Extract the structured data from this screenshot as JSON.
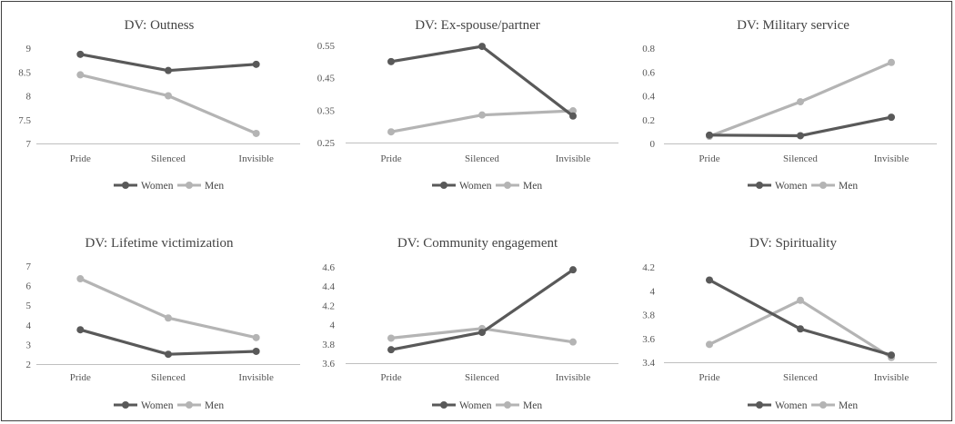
{
  "colors": {
    "women": "#595959",
    "men": "#b4b4b4",
    "axis": "#bfbfbf",
    "text": "#444444"
  },
  "legend": {
    "women": "Women",
    "men": "Men"
  },
  "chart_data": [
    {
      "type": "line",
      "title": "DV: Outness",
      "categories": [
        "Pride",
        "Silenced",
        "Invisible"
      ],
      "ylim": [
        7,
        9
      ],
      "yticks": [
        7,
        7.5,
        8,
        8.5,
        9
      ],
      "ytick_labels": [
        "7",
        "7.5",
        "8",
        "8.5",
        "9"
      ],
      "series": [
        {
          "name": "Women",
          "values": [
            8.87,
            8.53,
            8.66
          ]
        },
        {
          "name": "Men",
          "values": [
            8.44,
            8.0,
            7.21
          ]
        }
      ]
    },
    {
      "type": "line",
      "title": "DV: Ex-spouse/partner",
      "categories": [
        "Pride",
        "Silenced",
        "Invisible"
      ],
      "ylim": [
        0.25,
        0.55
      ],
      "yticks": [
        0.25,
        0.35,
        0.45,
        0.55
      ],
      "ytick_labels": [
        "0.25",
        "0.35",
        "0.45",
        "0.55"
      ],
      "series": [
        {
          "name": "Women",
          "values": [
            0.5,
            0.547,
            0.332
          ]
        },
        {
          "name": "Men",
          "values": [
            0.283,
            0.335,
            0.348
          ]
        }
      ]
    },
    {
      "type": "line",
      "title": "DV: Military service",
      "categories": [
        "Pride",
        "Silenced",
        "Invisible"
      ],
      "ylim": [
        0,
        0.8
      ],
      "yticks": [
        0,
        0.2,
        0.4,
        0.6,
        0.8
      ],
      "ytick_labels": [
        "0",
        "0.2",
        "0.4",
        "0.6",
        "0.8"
      ],
      "series": [
        {
          "name": "Women",
          "values": [
            0.07,
            0.065,
            0.22
          ]
        },
        {
          "name": "Men",
          "values": [
            0.06,
            0.35,
            0.68
          ]
        }
      ]
    },
    {
      "type": "line",
      "title": "DV: Lifetime victimization",
      "categories": [
        "Pride",
        "Silenced",
        "Invisible"
      ],
      "ylim": [
        2,
        7
      ],
      "yticks": [
        2,
        3,
        4,
        5,
        6,
        7
      ],
      "ytick_labels": [
        "2",
        "3",
        "4",
        "5",
        "6",
        "7"
      ],
      "series": [
        {
          "name": "Women",
          "values": [
            3.75,
            2.5,
            2.65
          ]
        },
        {
          "name": "Men",
          "values": [
            6.35,
            4.35,
            3.35
          ]
        }
      ]
    },
    {
      "type": "line",
      "title": "DV: Community engagement",
      "categories": [
        "Pride",
        "Silenced",
        "Invisible"
      ],
      "ylim": [
        3.6,
        4.6
      ],
      "yticks": [
        3.6,
        3.8,
        4.0,
        4.2,
        4.4,
        4.6
      ],
      "ytick_labels": [
        "3.6",
        "3.8",
        "4",
        "4.2",
        "4.4",
        "4.6"
      ],
      "series": [
        {
          "name": "Women",
          "values": [
            3.74,
            3.92,
            4.57
          ]
        },
        {
          "name": "Men",
          "values": [
            3.86,
            3.96,
            3.82
          ]
        }
      ]
    },
    {
      "type": "line",
      "title": "DV: Spirituality",
      "categories": [
        "Pride",
        "Silenced",
        "Invisible"
      ],
      "ylim": [
        3.4,
        4.2
      ],
      "yticks": [
        3.4,
        3.6,
        3.8,
        4.0,
        4.2
      ],
      "ytick_labels": [
        "3.4",
        "3.6",
        "3.8",
        "4",
        "4.2"
      ],
      "series": [
        {
          "name": "Women",
          "values": [
            4.09,
            3.68,
            3.46
          ]
        },
        {
          "name": "Men",
          "values": [
            3.55,
            3.92,
            3.44
          ]
        }
      ]
    }
  ]
}
